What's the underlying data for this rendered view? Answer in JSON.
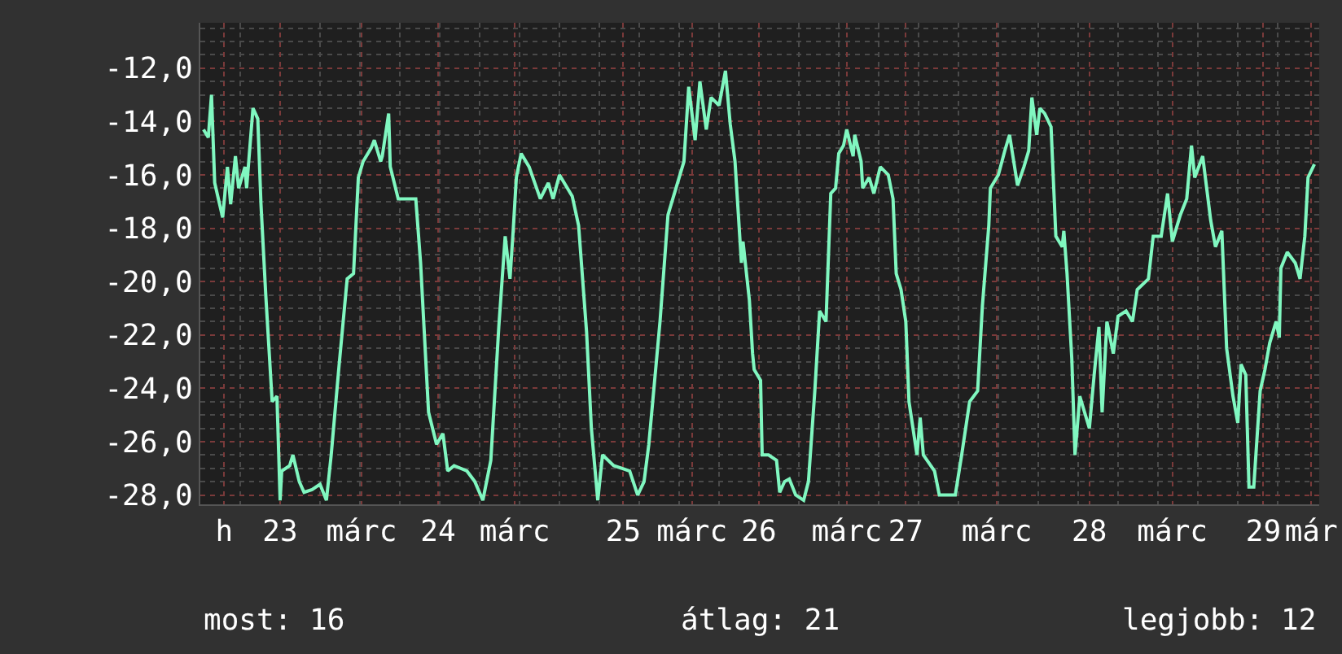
{
  "chart_data": {
    "type": "line",
    "color": "#80f7c0",
    "line_style": "solid",
    "marker": "none",
    "grid": true,
    "xlim": [
      22.5,
      29.51
    ],
    "ylim": [
      -28.35,
      -10.3
    ],
    "yticks": [
      {
        "value": -12,
        "label": "-12,0"
      },
      {
        "value": -14,
        "label": "-14,0"
      },
      {
        "value": -16,
        "label": "-16,0"
      },
      {
        "value": -18,
        "label": "-18,0"
      },
      {
        "value": -20,
        "label": "-20,0"
      },
      {
        "value": -22,
        "label": "-22,0"
      },
      {
        "value": -24,
        "label": "-24,0"
      },
      {
        "value": -26,
        "label": "-26,0"
      },
      {
        "value": -28,
        "label": "-28,0"
      }
    ],
    "xticks": [
      {
        "value": 22.65,
        "label": "h"
      },
      23,
      {
        "value": 23.51,
        "label": "márc"
      },
      {
        "value": 23.99,
        "label": "24"
      },
      {
        "value": 24.47,
        "label": "márc"
      },
      {
        "value": 25.15,
        "label": "25"
      },
      {
        "value": 25.58,
        "label": "márc"
      },
      26,
      {
        "value": 26.55,
        "label": "márc"
      },
      {
        "value": 26.92,
        "label": "27"
      },
      {
        "value": 27.49,
        "label": "márc"
      },
      {
        "value": 28.07,
        "label": "28"
      },
      {
        "value": 28.59,
        "label": "márc"
      },
      {
        "value": 29.16,
        "label": "29"
      },
      {
        "value": 29.46,
        "label": "már"
      }
    ],
    "annotations": [
      "most: 16",
      "átlag: 21",
      "legjobb: 12"
    ],
    "x": [
      22.52,
      22.55,
      22.57,
      22.59,
      22.64,
      22.67,
      22.69,
      22.72,
      22.74,
      22.78,
      22.79,
      22.83,
      22.86,
      22.88,
      22.91,
      22.95,
      22.98,
      23.0,
      23.01,
      23.06,
      23.08,
      23.12,
      23.15,
      23.2,
      23.25,
      23.29,
      23.32,
      23.37,
      23.42,
      23.46,
      23.49,
      23.52,
      23.57,
      23.59,
      23.63,
      23.64,
      23.68,
      23.69,
      23.74,
      23.85,
      23.88,
      23.93,
      23.98,
      24.02,
      24.05,
      24.09,
      24.17,
      24.22,
      24.27,
      24.32,
      24.37,
      24.41,
      24.44,
      24.46,
      24.48,
      24.51,
      24.56,
      24.63,
      24.68,
      24.71,
      24.75,
      24.83,
      24.87,
      24.92,
      24.95,
      24.99,
      25.02,
      25.09,
      25.19,
      25.24,
      25.28,
      25.31,
      25.38,
      25.43,
      25.48,
      25.53,
      25.56,
      25.6,
      25.63,
      25.67,
      25.7,
      25.75,
      25.79,
      25.82,
      25.85,
      25.89,
      25.9,
      25.94,
      25.96,
      25.97,
      26.01,
      26.02,
      26.06,
      26.11,
      26.13,
      26.16,
      26.19,
      26.23,
      26.28,
      26.31,
      26.35,
      26.36,
      26.38,
      26.42,
      26.45,
      26.48,
      26.5,
      26.53,
      26.55,
      26.59,
      26.6,
      26.64,
      26.65,
      26.69,
      26.72,
      26.76,
      26.81,
      26.84,
      26.86,
      26.89,
      26.92,
      26.94,
      26.99,
      27.01,
      27.03,
      27.1,
      27.13,
      27.23,
      27.27,
      27.32,
      27.37,
      27.4,
      27.44,
      27.45,
      27.5,
      27.54,
      27.57,
      27.62,
      27.66,
      27.69,
      27.71,
      27.74,
      27.76,
      27.79,
      27.83,
      27.86,
      27.9,
      27.91,
      27.93,
      27.96,
      27.98,
      28.01,
      28.07,
      28.1,
      28.13,
      28.15,
      28.18,
      28.22,
      28.25,
      28.3,
      28.34,
      28.37,
      28.44,
      28.47,
      28.52,
      28.56,
      28.59,
      28.64,
      28.68,
      28.71,
      28.73,
      28.78,
      28.83,
      28.86,
      28.9,
      28.93,
      28.97,
      29.0,
      29.02,
      29.05,
      29.07,
      29.1,
      29.14,
      29.17,
      29.2,
      29.24,
      29.26,
      29.27,
      29.31,
      29.36,
      29.39,
      29.42,
      29.44,
      29.48
    ],
    "values": [
      -14.3,
      -14.6,
      -13.0,
      -16.3,
      -17.6,
      -15.7,
      -17.1,
      -15.3,
      -16.5,
      -15.7,
      -16.5,
      -13.5,
      -13.9,
      -17.1,
      -20.5,
      -24.5,
      -24.3,
      -28.2,
      -27.1,
      -26.9,
      -26.5,
      -27.5,
      -27.9,
      -27.8,
      -27.6,
      -28.2,
      -26.5,
      -23.1,
      -19.9,
      -19.7,
      -16.1,
      -15.5,
      -15.0,
      -14.7,
      -15.5,
      -15.3,
      -13.7,
      -15.7,
      -16.9,
      -16.9,
      -19.3,
      -24.9,
      -26.1,
      -25.7,
      -27.1,
      -26.9,
      -27.1,
      -27.5,
      -28.2,
      -26.7,
      -21.7,
      -18.3,
      -19.9,
      -18.1,
      -16.1,
      -15.2,
      -15.7,
      -16.9,
      -16.3,
      -16.9,
      -16.0,
      -16.8,
      -17.9,
      -21.9,
      -25.5,
      -28.2,
      -26.5,
      -26.9,
      -27.1,
      -28.0,
      -27.5,
      -26.1,
      -21.5,
      -17.5,
      -16.5,
      -15.5,
      -12.7,
      -14.7,
      -12.5,
      -14.3,
      -13.1,
      -13.4,
      -12.1,
      -14.1,
      -15.5,
      -19.3,
      -18.5,
      -20.7,
      -22.7,
      -23.3,
      -23.7,
      -26.5,
      -26.5,
      -26.7,
      -27.9,
      -27.5,
      -27.4,
      -28.0,
      -28.2,
      -27.5,
      -24.1,
      -23.1,
      -21.1,
      -21.5,
      -16.7,
      -16.5,
      -15.2,
      -14.9,
      -14.3,
      -15.3,
      -14.5,
      -15.5,
      -16.5,
      -16.1,
      -16.7,
      -15.7,
      -16.0,
      -16.9,
      -19.7,
      -20.3,
      -21.5,
      -24.5,
      -26.5,
      -25.1,
      -26.5,
      -27.1,
      -28.0,
      -28.0,
      -26.5,
      -24.5,
      -24.1,
      -20.9,
      -17.9,
      -16.5,
      -16.0,
      -15.1,
      -14.5,
      -16.4,
      -15.7,
      -15.1,
      -13.1,
      -14.5,
      -13.5,
      -13.7,
      -14.2,
      -18.3,
      -18.7,
      -18.1,
      -19.7,
      -22.9,
      -26.5,
      -24.3,
      -25.5,
      -23.5,
      -21.7,
      -24.9,
      -21.5,
      -22.7,
      -21.3,
      -21.1,
      -21.5,
      -20.3,
      -19.9,
      -18.3,
      -18.3,
      -16.7,
      -18.5,
      -17.5,
      -16.9,
      -14.9,
      -16.1,
      -15.3,
      -17.7,
      -18.7,
      -18.1,
      -22.5,
      -24.3,
      -25.3,
      -23.1,
      -23.5,
      -27.7,
      -27.7,
      -24.1,
      -23.3,
      -22.3,
      -21.5,
      -22.1,
      -19.5,
      -18.9,
      -19.3,
      -19.9,
      -18.3,
      -16.1,
      -15.6
    ]
  }
}
